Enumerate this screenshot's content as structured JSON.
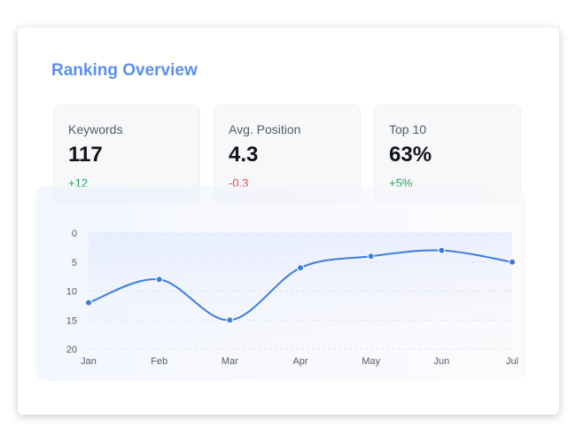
{
  "card": {
    "title": "Ranking Overview"
  },
  "stats": [
    {
      "label": "Keywords",
      "value": "117",
      "change": "+12",
      "trend": "positive"
    },
    {
      "label": "Avg. Position",
      "value": "4.3",
      "change": "-0.3",
      "trend": "negative"
    },
    {
      "label": "Top 10",
      "value": "63%",
      "change": "+5%",
      "trend": "positive"
    }
  ],
  "colors": {
    "accent": "#5b8fee",
    "line": "#3b7ddd",
    "positive": "#22a35a",
    "negative": "#e04b4b"
  },
  "chart_data": {
    "type": "line",
    "categories": [
      "Jan",
      "Feb",
      "Mar",
      "Apr",
      "May",
      "Jun",
      "Jul"
    ],
    "series": [
      {
        "values": [
          12,
          8,
          15,
          6,
          4,
          3,
          5
        ]
      }
    ],
    "ylim": [
      0,
      20
    ],
    "y_inverted": true,
    "yticks": [
      0,
      5,
      10,
      15,
      20
    ],
    "grid": true,
    "smooth": true
  }
}
